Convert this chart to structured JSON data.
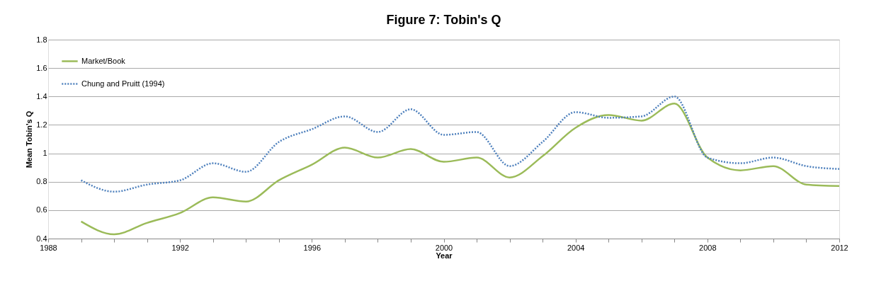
{
  "chart_data": {
    "type": "line",
    "title": "Figure 7: Tobin's Q",
    "xlabel": "Year",
    "ylabel": "Mean Tobin's Q",
    "x": [
      1989,
      1990,
      1991,
      1992,
      1993,
      1994,
      1995,
      1996,
      1997,
      1998,
      1999,
      2000,
      2001,
      2002,
      2003,
      2004,
      2005,
      2006,
      2007,
      2008,
      2009,
      2010,
      2011,
      2012
    ],
    "series": [
      {
        "name": "Market/Book",
        "color": "#9bbb59",
        "line_style": "solid",
        "values": [
          0.52,
          0.43,
          0.51,
          0.58,
          0.69,
          0.66,
          0.81,
          0.92,
          1.04,
          0.97,
          1.03,
          0.94,
          0.97,
          0.83,
          0.98,
          1.18,
          1.27,
          1.23,
          1.35,
          0.97,
          0.88,
          0.91,
          0.78,
          0.77
        ]
      },
      {
        "name": "Chung and Pruitt (1994)",
        "color": "#4f81bd",
        "line_style": "dotted",
        "values": [
          0.81,
          0.73,
          0.78,
          0.81,
          0.93,
          0.87,
          1.08,
          1.17,
          1.26,
          1.15,
          1.31,
          1.13,
          1.15,
          0.91,
          1.08,
          1.29,
          1.25,
          1.26,
          1.4,
          0.97,
          0.93,
          0.97,
          0.91,
          0.89
        ]
      }
    ],
    "xlim": [
      1988,
      2012
    ],
    "xticks": [
      1988,
      {
        "value": 1989,
        "label": null
      },
      {
        "value": 1990,
        "label": null
      },
      {
        "value": 1991,
        "label": null
      },
      1992,
      {
        "value": 1993,
        "label": null
      },
      {
        "value": 1994,
        "label": null
      },
      {
        "value": 1995,
        "label": null
      },
      1996,
      {
        "value": 1997,
        "label": null
      },
      {
        "value": 1998,
        "label": null
      },
      {
        "value": 1999,
        "label": null
      },
      2000,
      {
        "value": 2001,
        "label": null
      },
      {
        "value": 2002,
        "label": null
      },
      {
        "value": 2003,
        "label": null
      },
      2004,
      {
        "value": 2005,
        "label": null
      },
      {
        "value": 2006,
        "label": null
      },
      {
        "value": 2007,
        "label": null
      },
      2008,
      {
        "value": 2009,
        "label": null
      },
      {
        "value": 2010,
        "label": null
      },
      {
        "value": 2011,
        "label": null
      },
      2012
    ],
    "ylim": [
      0.4,
      1.8
    ],
    "yticks": [
      0.4,
      0.6,
      0.8,
      1,
      1.2,
      1.4,
      1.6,
      1.8
    ],
    "grid": "y",
    "legend": "top left",
    "marker": "none"
  }
}
